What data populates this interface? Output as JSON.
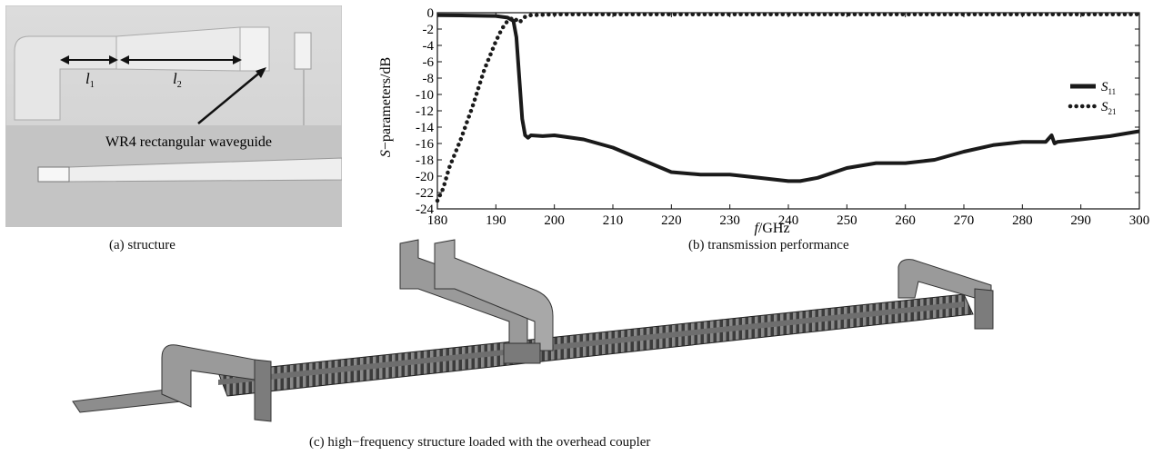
{
  "panel_a": {
    "label_l1": "l",
    "label_l1_sub": "1",
    "label_l2": "l",
    "label_l2_sub": "2",
    "annotation": "WR4 rectangular waveguide",
    "caption": "(a) structure"
  },
  "panel_c": {
    "caption": "(c) high−frequency structure loaded with the overhead coupler"
  },
  "chart_data": {
    "type": "line",
    "title": "",
    "caption": "(b) transmission performance",
    "xlabel": "f/GHz",
    "xlabel_italic": "f",
    "xlabel_rest": "/GHz",
    "ylabel": "S−parameters/dB",
    "ylabel_italic": "S",
    "ylabel_rest": "−parameters/dB",
    "xlim": [
      180,
      300
    ],
    "ylim": [
      -24,
      0
    ],
    "xticks": [
      180,
      190,
      200,
      210,
      220,
      230,
      240,
      250,
      260,
      270,
      280,
      290,
      300
    ],
    "yticks": [
      0,
      -2,
      -4,
      -6,
      -8,
      -10,
      -12,
      -14,
      -16,
      -18,
      -20,
      -22,
      -24
    ],
    "grid": false,
    "legend_position": "right",
    "series": [
      {
        "name": "S11",
        "name_base": "S",
        "name_sub": "11",
        "style": "solid",
        "color": "#1a1a1a",
        "x": [
          180,
          185,
          190,
          192,
          193,
          193.5,
          194,
          194.5,
          195,
          195.5,
          196,
          198,
          200,
          205,
          210,
          215,
          220,
          225,
          230,
          235,
          240,
          242,
          245,
          250,
          255,
          260,
          265,
          270,
          275,
          280,
          284,
          285,
          285.5,
          286,
          290,
          295,
          300
        ],
        "y": [
          -0.3,
          -0.35,
          -0.4,
          -0.6,
          -1.0,
          -3.0,
          -8.0,
          -13.0,
          -15.0,
          -15.3,
          -15.0,
          -15.1,
          -15.0,
          -15.5,
          -16.5,
          -18.0,
          -19.5,
          -19.8,
          -19.8,
          -20.2,
          -20.6,
          -20.6,
          -20.2,
          -19.0,
          -18.4,
          -18.4,
          -18.0,
          -17.0,
          -16.2,
          -15.8,
          -15.8,
          -15.0,
          -16.0,
          -15.8,
          -15.5,
          -15.1,
          -14.5
        ]
      },
      {
        "name": "S21",
        "name_base": "S",
        "name_sub": "21",
        "style": "dotted",
        "color": "#1a1a1a",
        "x": [
          180,
          181,
          182,
          184,
          186,
          188,
          190,
          191,
          192,
          193,
          194,
          195,
          196,
          200,
          210,
          220,
          240,
          260,
          280,
          300
        ],
        "y": [
          -23.0,
          -21.5,
          -19.0,
          -15.5,
          -11.5,
          -7.0,
          -3.5,
          -2.0,
          -1.0,
          -0.6,
          -1.2,
          -0.5,
          -0.3,
          -0.2,
          -0.2,
          -0.2,
          -0.2,
          -0.2,
          -0.2,
          -0.2
        ]
      }
    ]
  }
}
